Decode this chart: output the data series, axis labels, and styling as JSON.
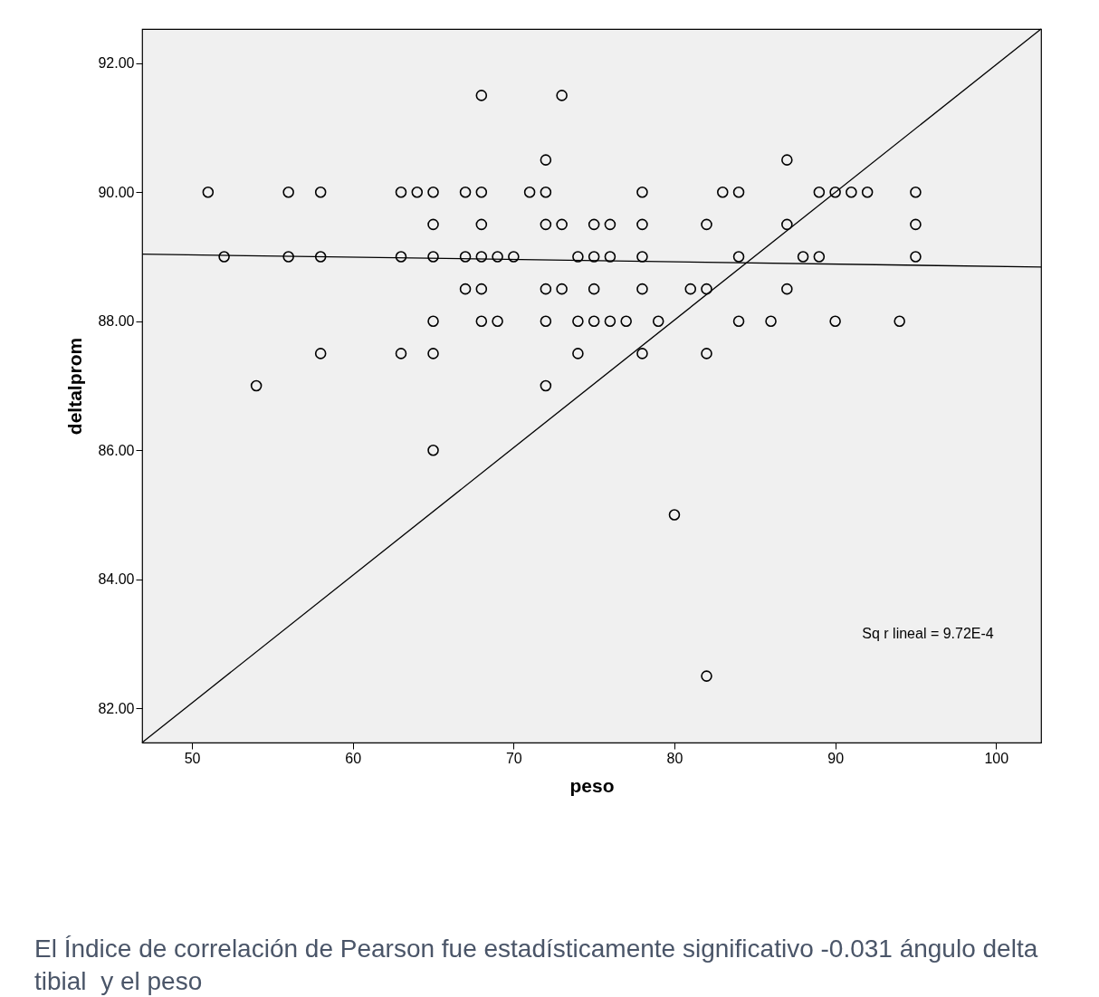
{
  "chart_data": {
    "type": "scatter",
    "xlabel": "peso",
    "ylabel": "deltalprom",
    "xlim": [
      46.9,
      102.8
    ],
    "ylim": [
      81.47,
      92.53
    ],
    "xticks": [
      50,
      60,
      70,
      80,
      90,
      100
    ],
    "yticks": [
      {
        "value": 82,
        "label": "82.00"
      },
      {
        "value": 84,
        "label": "84.00"
      },
      {
        "value": 86,
        "label": "86.00"
      },
      {
        "value": 88,
        "label": "88.00"
      },
      {
        "value": 90,
        "label": "90.00"
      },
      {
        "value": 92,
        "label": "92.00"
      }
    ],
    "grid": false,
    "series": [
      {
        "marker": "circle",
        "color": "#000000",
        "x": [
          51,
          56,
          58,
          63,
          64,
          65,
          67,
          68,
          71,
          72,
          78,
          83,
          84,
          89,
          90,
          91,
          92,
          95,
          68,
          73,
          72,
          87,
          65,
          68,
          72,
          73,
          75,
          76,
          78,
          82,
          87,
          95,
          52,
          56,
          58,
          63,
          65,
          67,
          68,
          69,
          70,
          74,
          75,
          76,
          78,
          84,
          88,
          89,
          95,
          67,
          68,
          72,
          73,
          75,
          78,
          81,
          82,
          87,
          65,
          68,
          69,
          72,
          74,
          75,
          76,
          77,
          79,
          84,
          86,
          90,
          94,
          58,
          63,
          65,
          74,
          78,
          82,
          54,
          72,
          65,
          80,
          82
        ],
        "values": [
          90,
          90,
          90,
          90,
          90,
          90,
          90,
          90,
          90,
          90,
          90,
          90,
          90,
          90,
          90,
          90,
          90,
          90,
          91.5,
          91.5,
          90.5,
          90.5,
          89.5,
          89.5,
          89.5,
          89.5,
          89.5,
          89.5,
          89.5,
          89.5,
          89.5,
          89.5,
          89,
          89,
          89,
          89,
          89,
          89,
          89,
          89,
          89,
          89,
          89,
          89,
          89,
          89,
          89,
          89,
          89,
          88.5,
          88.5,
          88.5,
          88.5,
          88.5,
          88.5,
          88.5,
          88.5,
          88.5,
          88,
          88,
          88,
          88,
          88,
          88,
          88,
          88,
          88,
          88,
          88,
          88,
          88,
          87.5,
          87.5,
          87.5,
          87.5,
          87.5,
          87.5,
          87,
          87,
          86,
          85,
          82.5
        ]
      },
      {
        "type": "line",
        "color": "#000000",
        "x": [
          46.9,
          102.8
        ],
        "values": [
          89.04,
          88.84
        ]
      },
      {
        "type": "line",
        "color": "#000000",
        "x": [
          46.9,
          102.8
        ],
        "values": [
          81.47,
          92.53
        ]
      }
    ],
    "annotations": [
      "Sq r lineal = 9.72E-4",
      "El Índice de correlación de Pearson fue estadísticamente significativo -0.031 ángulo delta tibial  y el peso"
    ]
  }
}
